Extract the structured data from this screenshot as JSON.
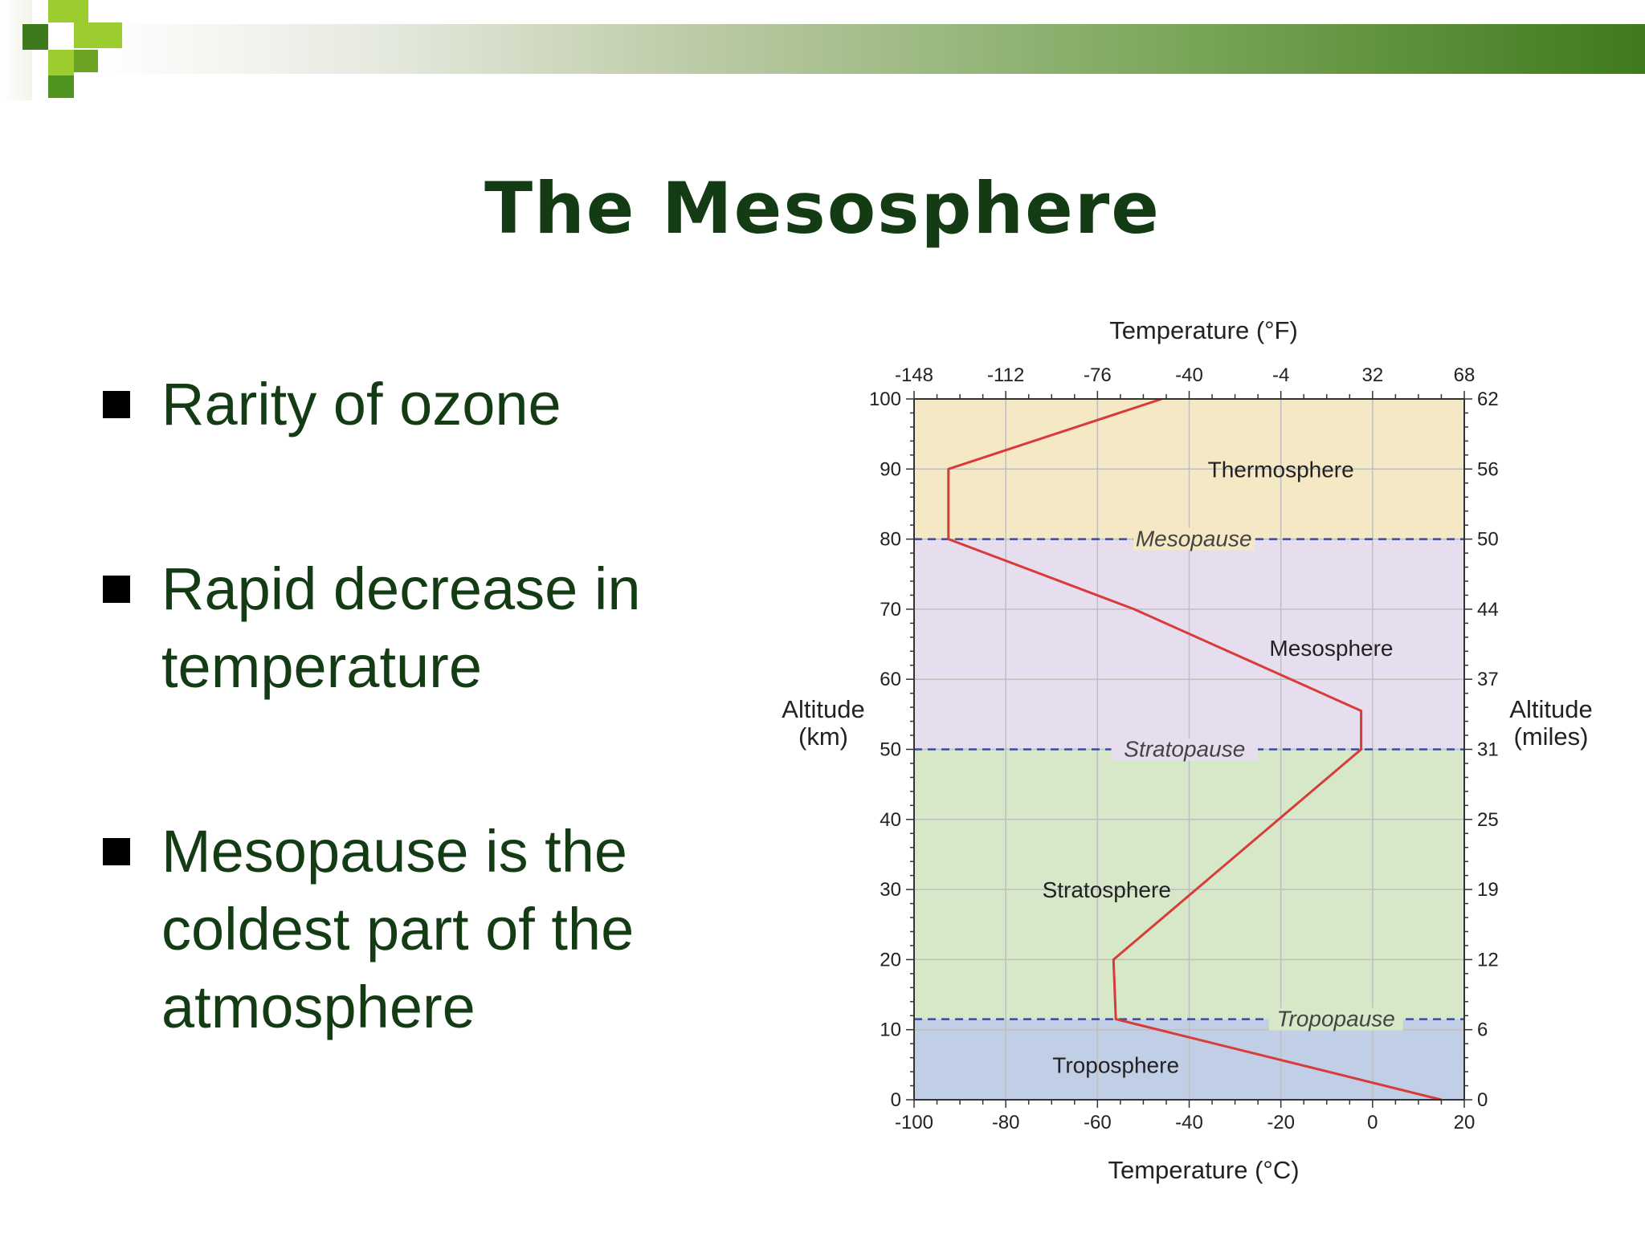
{
  "slide": {
    "title": "The Mesosphere",
    "bullets": [
      "Rarity of ozone",
      "Rapid decrease in temperature",
      "Mesopause is the coldest part of the atmosphere"
    ]
  },
  "theme": {
    "title_color": "#143c14",
    "bar_color_dark": "#3f7a1c",
    "logo_green_dark": "#3d7a1c",
    "logo_green_light": "#9ccc2e",
    "logo_green_mid": "#6aa420"
  },
  "chart_data": {
    "type": "line",
    "title": "",
    "xlabel_top": "Temperature (°F)",
    "xlabel_bottom": "Temperature (°C)",
    "ylabel_left": "Altitude\n(km)",
    "ylabel_right": "Altitude\n(miles)",
    "xlim": [
      -100,
      20
    ],
    "ylim": [
      0,
      100
    ],
    "x_ticks_bottom": [
      -100,
      -80,
      -60,
      -40,
      -20,
      0,
      20
    ],
    "x_tick_labels_bottom": [
      "-100",
      "-80",
      "-60",
      "-40",
      "-20",
      "0",
      "20"
    ],
    "x_ticks_top": [
      -100,
      -80,
      -60,
      -40,
      -20,
      0,
      20
    ],
    "x_tick_labels_top": [
      "-148",
      "-112",
      "-76",
      "-40",
      "-4",
      "32",
      "68"
    ],
    "y_ticks_left": [
      0,
      10,
      20,
      30,
      40,
      50,
      60,
      70,
      80,
      90,
      100
    ],
    "y_tick_labels_left": [
      "0",
      "10",
      "20",
      "30",
      "40",
      "50",
      "60",
      "70",
      "80",
      "90",
      "100"
    ],
    "y_ticks_right": [
      0,
      10,
      20,
      30,
      40,
      50,
      60,
      70,
      80,
      90,
      100
    ],
    "y_tick_labels_right": [
      "0",
      "6",
      "12",
      "19",
      "25",
      "31",
      "37",
      "44",
      "50",
      "56",
      "62"
    ],
    "grid": true,
    "layers": [
      {
        "name": "Troposphere",
        "from": 0,
        "to": 11.5,
        "color": "#c0cfe6",
        "label_x": -56,
        "label_y": 5
      },
      {
        "name": "Stratosphere",
        "from": 11.5,
        "to": 50,
        "color": "#d6e8c8",
        "label_x": -58,
        "label_y": 30
      },
      {
        "name": "Mesosphere",
        "from": 50,
        "to": 80,
        "color": "#e6deee",
        "label_x": -9,
        "label_y": 64.5
      },
      {
        "name": "Thermosphere",
        "from": 80,
        "to": 100,
        "color": "#f5e8c4",
        "label_x": -20,
        "label_y": 90
      }
    ],
    "boundaries": [
      {
        "name": "Tropopause",
        "altitude": 11.5,
        "label_x": -8
      },
      {
        "name": "Stratopause",
        "altitude": 50,
        "label_x": -41
      },
      {
        "name": "Mesopause",
        "altitude": 80,
        "label_x": -39
      }
    ],
    "series": [
      {
        "color": "#d93a3a",
        "points": [
          [
            15,
            0
          ],
          [
            -56,
            11.5
          ],
          [
            -56.5,
            20
          ],
          [
            -2.5,
            50
          ],
          [
            -2.5,
            55.5
          ],
          [
            -52,
            70
          ],
          [
            -92.5,
            80
          ],
          [
            -92.5,
            90
          ],
          [
            -46,
            100
          ]
        ]
      }
    ]
  }
}
